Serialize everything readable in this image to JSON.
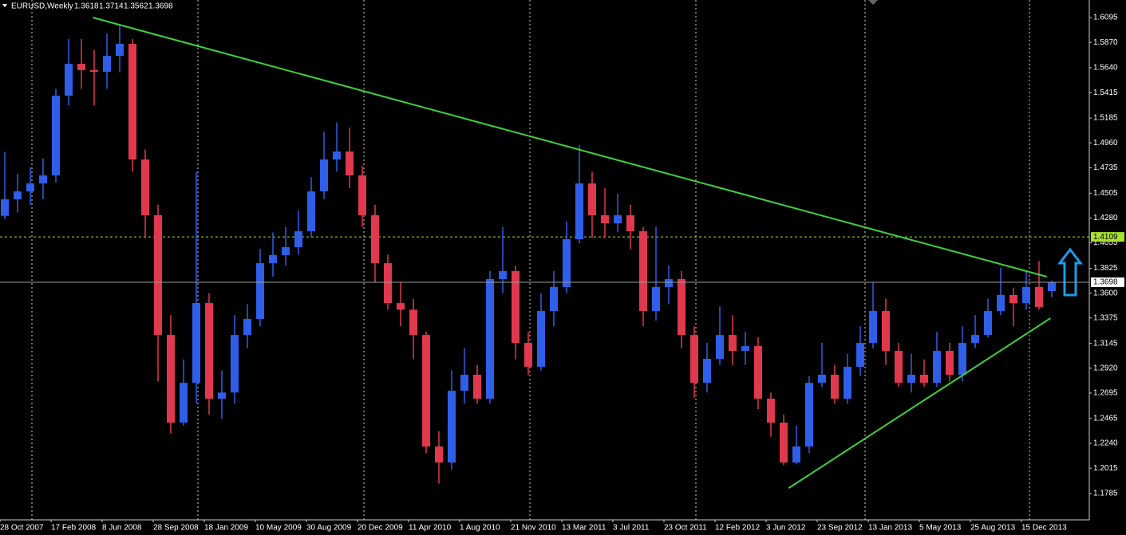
{
  "chart_data": {
    "type": "candlestick",
    "title": "EURUSD,Weekly",
    "categories": [
      "28 Oct 2007",
      null,
      null,
      null,
      "17 Feb 2008",
      null,
      null,
      null,
      "8 Jun 2008",
      null,
      null,
      null,
      "28 Sep 2008",
      null,
      null,
      null,
      "18 Jan 2009",
      null,
      null,
      null,
      "10 May 2009",
      null,
      null,
      null,
      "30 Aug 2009",
      null,
      null,
      null,
      "20 Dec 2009",
      null,
      null,
      null,
      "11 Apr 2010",
      null,
      null,
      null,
      "1 Aug 2010",
      null,
      null,
      null,
      "21 Nov 2010",
      null,
      null,
      null,
      "13 Mar 2011",
      null,
      null,
      null,
      "3 Jul 2011",
      null,
      null,
      null,
      "23 Oct 2011",
      null,
      null,
      null,
      "12 Feb 2012",
      null,
      null,
      null,
      "3 Jun 2012",
      null,
      null,
      null,
      "23 Sep 2012",
      null,
      null,
      null,
      "13 Jan 2013",
      null,
      null,
      null,
      "5 May 2013",
      null,
      null,
      null,
      "25 Aug 2013",
      null,
      null,
      null,
      "15 Dec 2013",
      null,
      null
    ],
    "open": [
      1.43,
      1.4449,
      1.4521,
      1.4593,
      1.4666,
      1.5388,
      1.5676,
      1.562,
      1.5604,
      1.5749,
      1.5857,
      1.481,
      1.4305,
      1.3221,
      1.2427,
      1.2788,
      1.351,
      1.2644,
      1.27,
      1.3221,
      1.3366,
      1.3871,
      1.3944,
      1.4016,
      1.416,
      1.4521,
      1.481,
      1.4882,
      1.4666,
      1.4305,
      1.3871,
      1.351,
      1.345,
      1.3221,
      1.2211,
      1.2066,
      1.2716,
      1.2861,
      1.2644,
      1.3727,
      1.3799,
      1.3149,
      1.2933,
      1.3438,
      1.3655,
      1.4088,
      1.4593,
      1.4305,
      1.4232,
      1.4305,
      1.416,
      1.3438,
      1.3655,
      1.3727,
      1.3221,
      1.2788,
      1.3005,
      1.3221,
      1.3077,
      1.312,
      1.2644,
      1.2427,
      1.2066,
      1.2211,
      1.2788,
      1.2861,
      1.2644,
      1.2933,
      1.3149,
      1.3438,
      1.3077,
      1.2788,
      1.2861,
      1.2788,
      1.3077,
      1.2861,
      1.3149,
      1.3221,
      1.3438,
      1.3583,
      1.351,
      1.3655,
      1.3618
    ],
    "high": [
      1.488,
      1.468,
      1.474,
      1.482,
      1.545,
      1.59,
      1.59,
      1.58,
      1.595,
      1.6038,
      1.59,
      1.49,
      1.44,
      1.34,
      1.3,
      1.47,
      1.36,
      1.29,
      1.34,
      1.35,
      1.4,
      1.415,
      1.42,
      1.435,
      1.465,
      1.506,
      1.5145,
      1.51,
      1.475,
      1.44,
      1.395,
      1.37,
      1.355,
      1.325,
      1.235,
      1.29,
      1.31,
      1.295,
      1.38,
      1.42,
      1.385,
      1.325,
      1.36,
      1.38,
      1.425,
      1.494,
      1.47,
      1.455,
      1.45,
      1.44,
      1.42,
      1.42,
      1.385,
      1.38,
      1.33,
      1.315,
      1.348,
      1.34,
      1.325,
      1.32,
      1.27,
      1.25,
      1.24,
      1.285,
      1.315,
      1.295,
      1.305,
      1.33,
      1.37,
      1.355,
      1.315,
      1.305,
      1.3,
      1.325,
      1.315,
      1.33,
      1.34,
      1.355,
      1.383,
      1.365,
      1.38,
      1.389,
      1.3714
    ],
    "low": [
      1.427,
      1.433,
      1.44,
      1.445,
      1.46,
      1.53,
      1.545,
      1.53,
      1.545,
      1.56,
      1.47,
      1.41,
      1.28,
      1.233,
      1.24,
      1.26,
      1.25,
      1.246,
      1.26,
      1.31,
      1.33,
      1.375,
      1.385,
      1.395,
      1.41,
      1.445,
      1.47,
      1.455,
      1.42,
      1.37,
      1.345,
      1.33,
      1.3,
      1.215,
      1.1876,
      1.2,
      1.26,
      1.26,
      1.26,
      1.36,
      1.3,
      1.286,
      1.29,
      1.33,
      1.36,
      1.405,
      1.41,
      1.41,
      1.415,
      1.4,
      1.33,
      1.335,
      1.35,
      1.31,
      1.265,
      1.27,
      1.295,
      1.295,
      1.295,
      1.255,
      1.23,
      1.2042,
      1.205,
      1.215,
      1.275,
      1.26,
      1.26,
      1.285,
      1.31,
      1.295,
      1.275,
      1.27,
      1.275,
      1.275,
      1.28,
      1.28,
      1.31,
      1.32,
      1.34,
      1.33,
      1.345,
      1.345,
      1.3562
    ],
    "close": [
      1.4449,
      1.4521,
      1.4593,
      1.4666,
      1.5388,
      1.5676,
      1.562,
      1.5604,
      1.5749,
      1.5857,
      1.481,
      1.4305,
      1.3221,
      1.2427,
      1.2788,
      1.351,
      1.2644,
      1.27,
      1.3221,
      1.3366,
      1.3871,
      1.3944,
      1.4016,
      1.416,
      1.4521,
      1.481,
      1.4882,
      1.4666,
      1.4305,
      1.3871,
      1.351,
      1.345,
      1.3221,
      1.2211,
      1.2066,
      1.2716,
      1.2861,
      1.2644,
      1.3727,
      1.3799,
      1.3149,
      1.2933,
      1.3438,
      1.3655,
      1.4088,
      1.4593,
      1.4305,
      1.4232,
      1.4305,
      1.416,
      1.3438,
      1.3655,
      1.3727,
      1.3221,
      1.2788,
      1.3005,
      1.3221,
      1.3077,
      1.312,
      1.2644,
      1.2427,
      1.2066,
      1.2211,
      1.2788,
      1.2861,
      1.2644,
      1.2933,
      1.3149,
      1.3438,
      1.3077,
      1.2788,
      1.2861,
      1.2788,
      1.3077,
      1.2861,
      1.3149,
      1.3221,
      1.3438,
      1.3583,
      1.351,
      1.3655,
      1.3475,
      1.3698
    ],
    "up_color": "#2f5ee8",
    "down_color": "#e0394e",
    "ylim": [
      1.1547,
      1.6254
    ],
    "yticks": [
      1.6095,
      {
        "value": 1.587,
        "label": "1.5870"
      },
      {
        "value": 1.564,
        "label": "1.5640"
      },
      1.5415,
      1.5185,
      {
        "value": 1.496,
        "label": "1.4960"
      },
      1.4735,
      1.4505,
      {
        "value": 1.428,
        "label": "1.4280"
      },
      1.4055,
      1.3825,
      {
        "value": 1.36,
        "label": "1.3600"
      },
      1.3375,
      1.3145,
      {
        "value": 1.292,
        "label": "1.2920"
      },
      1.2695,
      1.2465,
      {
        "value": 1.224,
        "label": "1.2240"
      },
      1.2015,
      1.1785
    ],
    "level_line": {
      "value": 1.4109,
      "color": "#a6e22e"
    },
    "trendlines": [
      {
        "color": "#3fd13f",
        "x": [
          6.9,
          81.6
        ],
        "y": [
          1.6095,
          1.3749
        ]
      },
      {
        "color": "#3fd13f",
        "x": [
          61.4,
          81.9
        ],
        "y": [
          1.1835,
          1.3373
        ]
      }
    ]
  }
}
